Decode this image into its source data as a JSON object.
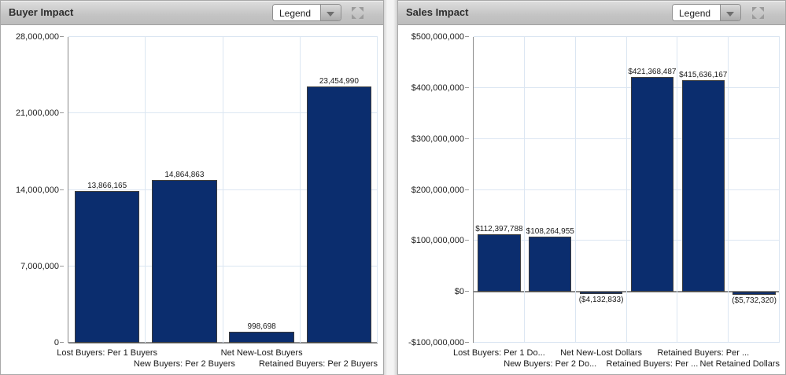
{
  "panels": [
    {
      "title": "Buyer Impact",
      "legend_label": "Legend"
    },
    {
      "title": "Sales Impact",
      "legend_label": "Legend"
    }
  ],
  "icons": {
    "legend_dropdown": "chevron-down",
    "panel_corner": "expand-arrows"
  },
  "colors": {
    "bar_fill": "#0b2d6e",
    "bar_border": "#3c3c3c",
    "gridline": "#dbe6f2",
    "axis": "#8a8a8a",
    "header_start": "#dedede",
    "header_end": "#bdbdbd"
  },
  "chart_data": [
    {
      "type": "bar",
      "title": "Buyer Impact",
      "xlabel": "",
      "ylabel": "",
      "ylim": [
        0,
        28000000
      ],
      "grid": true,
      "legend_position": "header-dropdown-collapsed",
      "categories": [
        "Lost Buyers: Per 1 Buyers",
        "New Buyers: Per 2 Buyers",
        "Net New-Lost Buyers",
        "Retained Buyers: Per 2 Buyers"
      ],
      "values": [
        13866165,
        14864863,
        998698,
        23454990
      ],
      "bar_labels": [
        "13,866,165",
        "14,864,863",
        "998,698",
        "23,454,990"
      ],
      "y_ticks": [
        {
          "value": 0,
          "label": "0"
        },
        {
          "value": 7000000,
          "label": "7,000,000"
        },
        {
          "value": 14000000,
          "label": "14,000,000"
        },
        {
          "value": 21000000,
          "label": "21,000,000"
        },
        {
          "value": 28000000,
          "label": "28,000,000"
        }
      ]
    },
    {
      "type": "bar",
      "title": "Sales Impact",
      "xlabel": "",
      "ylabel": "",
      "ylim": [
        -100000000,
        500000000
      ],
      "grid": true,
      "legend_position": "header-dropdown-collapsed",
      "categories": [
        "Lost Buyers: Per 1 Do...",
        "New Buyers: Per 2 Do...",
        "Net New-Lost Dollars",
        "Retained Buyers: Per ...",
        "Retained Buyers: Per ...",
        "Net Retained Dollars"
      ],
      "values": [
        112397788,
        108264955,
        -4132833,
        421368487,
        415636167,
        -5732320
      ],
      "bar_labels": [
        "$112,397,788",
        "$108,264,955",
        "($4,132,833)",
        "$421,368,487",
        "$415,636,167",
        "($5,732,320)"
      ],
      "y_ticks": [
        {
          "value": -100000000,
          "label": "-$100,000,000"
        },
        {
          "value": 0,
          "label": "$0"
        },
        {
          "value": 100000000,
          "label": "$100,000,000"
        },
        {
          "value": 200000000,
          "label": "$200,000,000"
        },
        {
          "value": 300000000,
          "label": "$300,000,000"
        },
        {
          "value": 400000000,
          "label": "$400,000,000"
        },
        {
          "value": 500000000,
          "label": "$500,000,000"
        }
      ]
    }
  ]
}
